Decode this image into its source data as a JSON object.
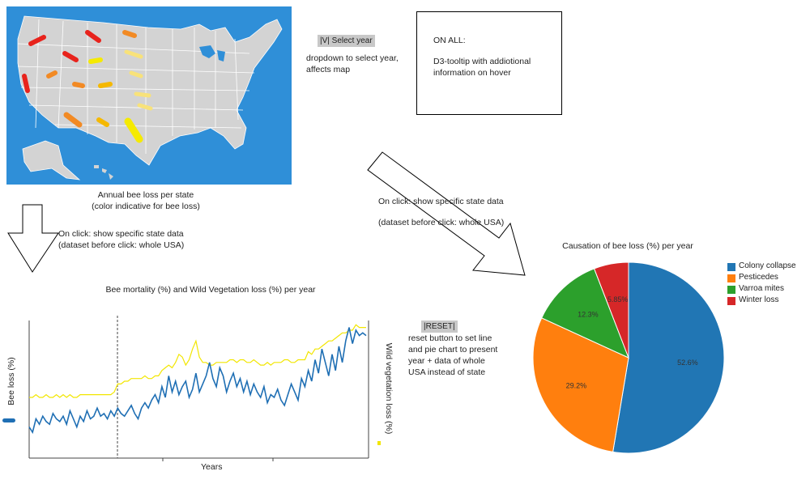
{
  "map": {
    "caption_line1": "Annual bee loss per state",
    "caption_line2": "(color indicative for bee loss)"
  },
  "year_select": {
    "label": "|V| Select year",
    "desc_line1": "dropdown to select year,",
    "desc_line2": "affects map"
  },
  "tooltip_note": {
    "title": "ON ALL:",
    "line1": "D3-tooltip with addiotional",
    "line2": "information on hover"
  },
  "arrow_left": {
    "line1": "On click: show specific state data",
    "line2": "(dataset before click: whole USA)"
  },
  "arrow_right": {
    "line1": "On click: show specific state data",
    "line2": "(dataset before click: whole USA)"
  },
  "line_chart": {
    "title": "Bee mortality (%) and Wild Vegetation loss (%) per year",
    "xlabel": "Years",
    "ylabel_left": "Bee loss (%)",
    "ylabel_right": "Wild vegetation loss (%)"
  },
  "reset": {
    "label": "|RESET|",
    "line1": "reset button to set line",
    "line2": "and pie chart to present",
    "line3": "year + data of whole",
    "line4": "USA instead of state"
  },
  "colors": {
    "bee_line": "#1f6fb4",
    "veg_line": "#f2e600",
    "map_land": "#d3d3d3",
    "map_water": "#2f8fd8",
    "colony": "#2176b4",
    "pesticides": "#ff7f0e",
    "varroa": "#2ca02c",
    "winter": "#d62728"
  },
  "chart_data": [
    {
      "type": "line",
      "title": "Bee mortality (%) and Wild Vegetation loss (%) per year",
      "xlabel": "Years",
      "ylabel": "Bee loss (%)",
      "y2label": "Wild vegetation loss (%)",
      "grid": false,
      "series": [
        {
          "name": "Bee loss (%)",
          "values": [
            22,
            18,
            28,
            24,
            30,
            26,
            24,
            32,
            28,
            26,
            30,
            24,
            34,
            28,
            22,
            30,
            26,
            34,
            28,
            30,
            36,
            30,
            32,
            28,
            34,
            30,
            36,
            32,
            30,
            34,
            38,
            32,
            28,
            36,
            40,
            36,
            42,
            46,
            40,
            52,
            44,
            60,
            48,
            56,
            46,
            52,
            56,
            44,
            50,
            62,
            48,
            54,
            60,
            70,
            58,
            52,
            66,
            60,
            48,
            56,
            62,
            52,
            58,
            48,
            56,
            46,
            54,
            48,
            44,
            52,
            40,
            46,
            44,
            50,
            42,
            38,
            46,
            54,
            48,
            42,
            58,
            52,
            64,
            56,
            72,
            62,
            80,
            70,
            60,
            76,
            64,
            82,
            70,
            86,
            96,
            84,
            94,
            90,
            92,
            90
          ]
        },
        {
          "name": "Wild vegetation loss (%)",
          "values": [
            44,
            44,
            46,
            44,
            44,
            46,
            44,
            44,
            46,
            44,
            46,
            44,
            46,
            44,
            44,
            46,
            46,
            46,
            46,
            46,
            46,
            46,
            46,
            46,
            46,
            48,
            54,
            54,
            56,
            56,
            58,
            58,
            58,
            58,
            60,
            58,
            58,
            60,
            60,
            64,
            66,
            68,
            66,
            70,
            76,
            74,
            68,
            72,
            80,
            86,
            74,
            70,
            70,
            68,
            68,
            70,
            70,
            70,
            70,
            72,
            72,
            70,
            72,
            72,
            70,
            70,
            72,
            70,
            68,
            68,
            70,
            68,
            70,
            70,
            70,
            72,
            72,
            70,
            70,
            72,
            72,
            72,
            78,
            76,
            80,
            80,
            82,
            84,
            86,
            86,
            88,
            90,
            92,
            92,
            94,
            94,
            98,
            96,
            96,
            96
          ]
        }
      ]
    },
    {
      "type": "pie",
      "title": "Causation of bee loss (%) per year",
      "legend": "top-right",
      "categories": [
        "Colony collapse",
        "Pesticedes",
        "Varroa mites",
        "Winter loss"
      ],
      "values": [
        52.6,
        29.2,
        12.3,
        5.85
      ],
      "labels": [
        "52.6%",
        "29.2%",
        "12.3%",
        "5.85%"
      ]
    }
  ]
}
